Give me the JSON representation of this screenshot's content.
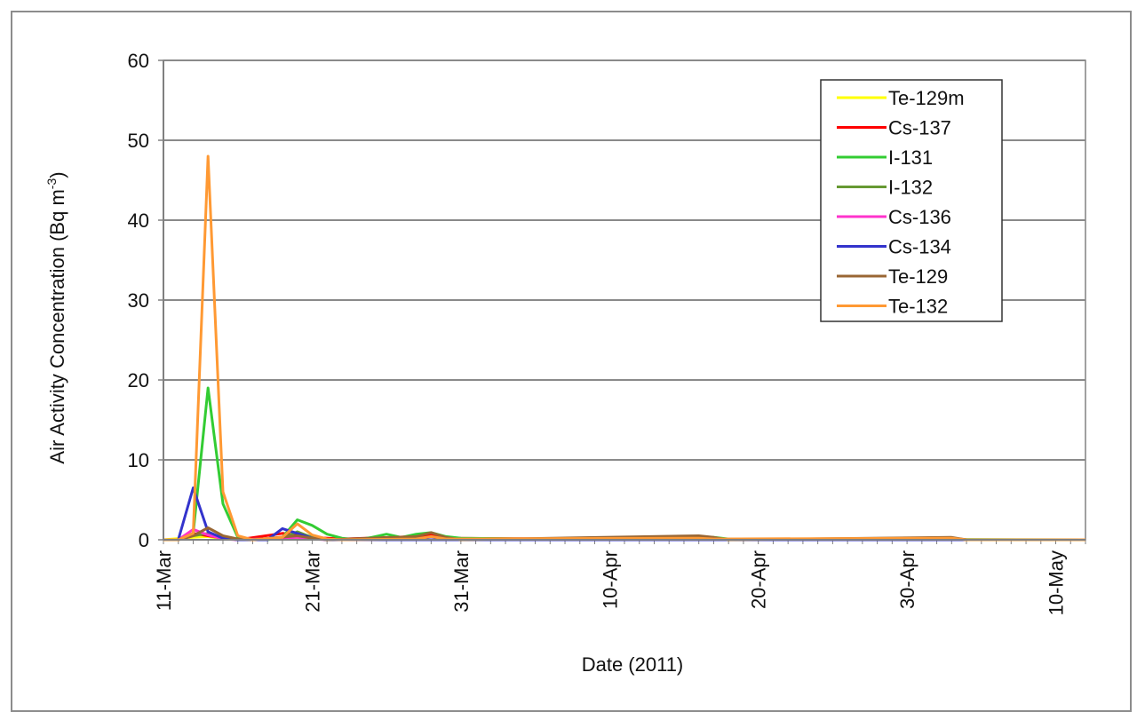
{
  "chart_data": {
    "type": "line",
    "title": "",
    "xlabel": "Date (2011)",
    "ylabel_main": "Air Activity Concentration (Bq m",
    "ylabel_sup": "-3",
    "ylabel_close": ")",
    "ylim": [
      0,
      60
    ],
    "yticks": [
      0,
      10,
      20,
      30,
      40,
      50,
      60
    ],
    "xlim": [
      "2011-03-11",
      "2011-05-12"
    ],
    "xtick_labels": [
      "11-Mar",
      "21-Mar",
      "31-Mar",
      "10-Apr",
      "20-Apr",
      "30-Apr",
      "10-May"
    ],
    "grid": "horizontal",
    "legend_placement": "top-right",
    "series": [
      {
        "name": "Te-129m",
        "color": "#ffff00",
        "points": [
          [
            "2011-03-11",
            0
          ],
          [
            "2011-03-13",
            0.3
          ],
          [
            "2011-03-14",
            0.4
          ],
          [
            "2011-03-15",
            0.1
          ],
          [
            "2011-03-17",
            0
          ],
          [
            "2011-03-20",
            0.2
          ],
          [
            "2011-03-21",
            0.1
          ],
          [
            "2011-03-24",
            0
          ],
          [
            "2011-05-12",
            0
          ]
        ]
      },
      {
        "name": "Cs-137",
        "color": "#ff0000",
        "points": [
          [
            "2011-03-11",
            0
          ],
          [
            "2011-03-12",
            0
          ],
          [
            "2011-03-13",
            0.8
          ],
          [
            "2011-03-14",
            0.5
          ],
          [
            "2011-03-15",
            0.2
          ],
          [
            "2011-03-16",
            0
          ],
          [
            "2011-03-19",
            0.8
          ],
          [
            "2011-03-20",
            0.6
          ],
          [
            "2011-03-21",
            0.3
          ],
          [
            "2011-03-23",
            0.1
          ],
          [
            "2011-03-28",
            0.4
          ],
          [
            "2011-03-29",
            0.6
          ],
          [
            "2011-03-30",
            0.2
          ],
          [
            "2011-04-15",
            0
          ],
          [
            "2011-04-16",
            0.4
          ],
          [
            "2011-04-17",
            0.2
          ],
          [
            "2011-04-18",
            0
          ],
          [
            "2011-05-02",
            0
          ],
          [
            "2011-05-03",
            0.2
          ],
          [
            "2011-05-04",
            0
          ],
          [
            "2011-05-12",
            0
          ]
        ]
      },
      {
        "name": "I-131",
        "color": "#33cc33",
        "points": [
          [
            "2011-03-11",
            0
          ],
          [
            "2011-03-12",
            0
          ],
          [
            "2011-03-13",
            0.8
          ],
          [
            "2011-03-14",
            19
          ],
          [
            "2011-03-15",
            4.5
          ],
          [
            "2011-03-16",
            0.3
          ],
          [
            "2011-03-17",
            0
          ],
          [
            "2011-03-18",
            0
          ],
          [
            "2011-03-19",
            0.3
          ],
          [
            "2011-03-20",
            2.5
          ],
          [
            "2011-03-21",
            1.8
          ],
          [
            "2011-03-22",
            0.7
          ],
          [
            "2011-03-23",
            0.2
          ],
          [
            "2011-03-24",
            0
          ],
          [
            "2011-03-25",
            0.3
          ],
          [
            "2011-03-26",
            0.7
          ],
          [
            "2011-03-27",
            0.3
          ],
          [
            "2011-03-28",
            0.7
          ],
          [
            "2011-03-29",
            0.9
          ],
          [
            "2011-03-30",
            0.4
          ],
          [
            "2011-03-31",
            0.2
          ],
          [
            "2011-04-05",
            0.1
          ],
          [
            "2011-04-16",
            0.3
          ],
          [
            "2011-04-17",
            0.3
          ],
          [
            "2011-04-18",
            0.1
          ],
          [
            "2011-05-12",
            0
          ]
        ]
      },
      {
        "name": "I-132",
        "color": "#669933",
        "points": [
          [
            "2011-03-11",
            0
          ],
          [
            "2011-03-12",
            0
          ],
          [
            "2011-03-13",
            0.5
          ],
          [
            "2011-03-14",
            0.8
          ],
          [
            "2011-03-15",
            0.3
          ],
          [
            "2011-03-16",
            0
          ],
          [
            "2011-03-19",
            0.2
          ],
          [
            "2011-03-20",
            1.0
          ],
          [
            "2011-03-21",
            0.3
          ],
          [
            "2011-03-22",
            0
          ],
          [
            "2011-05-12",
            0
          ]
        ]
      },
      {
        "name": "Cs-136",
        "color": "#ff33cc",
        "points": [
          [
            "2011-03-11",
            0
          ],
          [
            "2011-03-12",
            0
          ],
          [
            "2011-03-13",
            1.3
          ],
          [
            "2011-03-14",
            0.6
          ],
          [
            "2011-03-15",
            0.1
          ],
          [
            "2011-03-16",
            0
          ],
          [
            "2011-03-19",
            0.2
          ],
          [
            "2011-03-20",
            0.3
          ],
          [
            "2011-03-21",
            0.1
          ],
          [
            "2011-03-22",
            0
          ],
          [
            "2011-05-12",
            0
          ]
        ]
      },
      {
        "name": "Cs-134",
        "color": "#3333cc",
        "points": [
          [
            "2011-03-11",
            0
          ],
          [
            "2011-03-12",
            0
          ],
          [
            "2011-03-13",
            6.5
          ],
          [
            "2011-03-14",
            1.0
          ],
          [
            "2011-03-15",
            0.2
          ],
          [
            "2011-03-16",
            0
          ],
          [
            "2011-03-18",
            0
          ],
          [
            "2011-03-19",
            1.4
          ],
          [
            "2011-03-20",
            0.8
          ],
          [
            "2011-03-21",
            0.2
          ],
          [
            "2011-03-22",
            0
          ],
          [
            "2011-05-12",
            0
          ]
        ]
      },
      {
        "name": "Te-129",
        "color": "#996633",
        "points": [
          [
            "2011-03-11",
            0
          ],
          [
            "2011-03-12",
            0
          ],
          [
            "2011-03-13",
            0.5
          ],
          [
            "2011-03-14",
            1.5
          ],
          [
            "2011-03-15",
            0.5
          ],
          [
            "2011-03-16",
            0.1
          ],
          [
            "2011-03-17",
            0
          ],
          [
            "2011-03-20",
            0.5
          ],
          [
            "2011-03-21",
            0.2
          ],
          [
            "2011-03-22",
            0
          ],
          [
            "2011-03-28",
            0.4
          ],
          [
            "2011-03-29",
            0.9
          ],
          [
            "2011-03-30",
            0.3
          ],
          [
            "2011-03-31",
            0
          ],
          [
            "2011-04-16",
            0.5
          ],
          [
            "2011-04-17",
            0.3
          ],
          [
            "2011-04-18",
            0
          ],
          [
            "2011-05-03",
            0.3
          ],
          [
            "2011-05-04",
            0
          ],
          [
            "2011-05-12",
            0
          ]
        ]
      },
      {
        "name": "Te-132",
        "color": "#ff9933",
        "points": [
          [
            "2011-03-11",
            0
          ],
          [
            "2011-03-12",
            0
          ],
          [
            "2011-03-13",
            0.8
          ],
          [
            "2011-03-14",
            48
          ],
          [
            "2011-03-15",
            6
          ],
          [
            "2011-03-16",
            0.5
          ],
          [
            "2011-03-17",
            0
          ],
          [
            "2011-03-19",
            0.3
          ],
          [
            "2011-03-20",
            2.0
          ],
          [
            "2011-03-21",
            0.6
          ],
          [
            "2011-03-22",
            0.1
          ],
          [
            "2011-03-23",
            0
          ],
          [
            "2011-03-28",
            0.1
          ],
          [
            "2011-03-29",
            0.4
          ],
          [
            "2011-03-30",
            0.1
          ],
          [
            "2011-04-16",
            0.2
          ],
          [
            "2011-04-17",
            0.1
          ],
          [
            "2011-05-03",
            0.2
          ],
          [
            "2011-05-04",
            0
          ],
          [
            "2011-05-12",
            0
          ]
        ]
      }
    ]
  }
}
